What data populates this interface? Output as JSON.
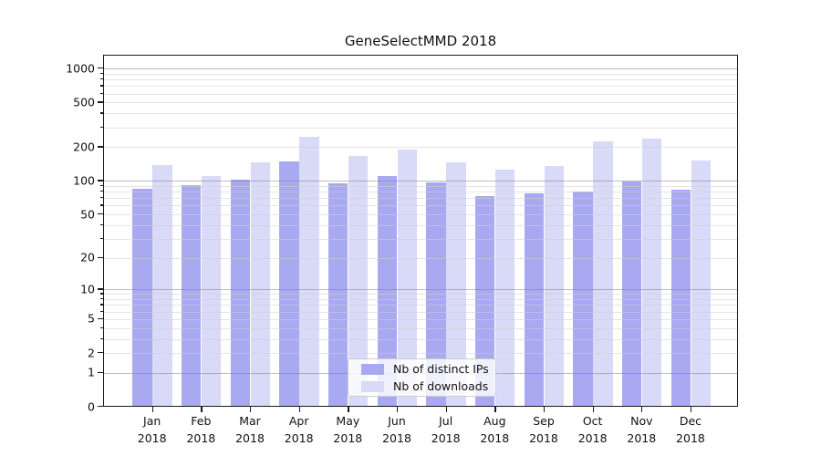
{
  "chart_data": {
    "type": "bar",
    "title": "GeneSelectMMD 2018",
    "year": "2018",
    "categories": [
      "Jan",
      "Feb",
      "Mar",
      "Apr",
      "May",
      "Jun",
      "Jul",
      "Aug",
      "Sep",
      "Oct",
      "Nov",
      "Dec"
    ],
    "series": [
      {
        "name": "Nb of distinct IPs",
        "color": "#a9a9f2",
        "values": [
          82,
          89,
          98,
          145,
          91,
          107,
          93,
          70,
          74,
          78,
          96,
          80
        ]
      },
      {
        "name": "Nb of downloads",
        "color": "#d9d9f8",
        "values": [
          133,
          107,
          141,
          240,
          161,
          183,
          140,
          122,
          132,
          217,
          232,
          148
        ]
      }
    ],
    "y_axis": {
      "scale": "log10(1+value)",
      "labeled_ticks": [
        0,
        1,
        2,
        5,
        10,
        20,
        50,
        100,
        200,
        500,
        1000
      ],
      "major_grid_values": [
        1,
        10,
        100,
        1000
      ],
      "minor_grid_values": [
        2,
        3,
        4,
        5,
        6,
        7,
        8,
        9,
        20,
        30,
        40,
        50,
        60,
        70,
        80,
        90,
        200,
        300,
        400,
        500,
        600,
        700,
        800,
        900
      ],
      "ylim": [
        0,
        1300
      ]
    },
    "x_axis": {
      "label_lines": 2
    },
    "legend": {
      "position": "lower center"
    },
    "grid": true,
    "colors": {
      "axis": "#1a1a1a",
      "major_grid": "#b4b4b4",
      "minor_grid": "#e8e8e8",
      "background": "#ffffff"
    }
  }
}
